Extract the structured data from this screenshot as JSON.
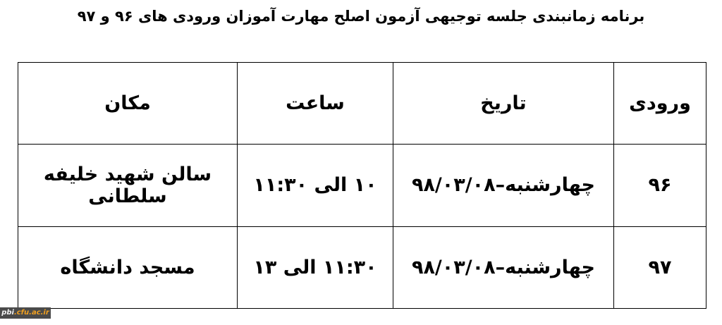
{
  "title": "برنامه زمانبندی جلسه توجیهی آزمون اصلح مهارت آموزان ورودی های ۹۶ و ۹۷",
  "table": {
    "headers": [
      "ورودی",
      "تاریخ",
      "ساعت",
      "مکان"
    ],
    "rows": [
      [
        "۹۶",
        "چهارشنبه–۹۸/۰۳/۰۸",
        "۱۰ الی ۱۱:۳۰",
        "سالن شهید خلیفه سلطانی"
      ],
      [
        "۹۷",
        "چهارشنبه–۹۸/۰۳/۰۸",
        "۱۱:۳۰ الی ۱۳",
        "مسجد دانشگاه"
      ]
    ]
  },
  "watermark": {
    "part1": "pbi",
    "part2": ".cfu.ac.ir",
    "colors": {
      "bg": "#4a4a4a",
      "accent": "#f0a020"
    }
  }
}
